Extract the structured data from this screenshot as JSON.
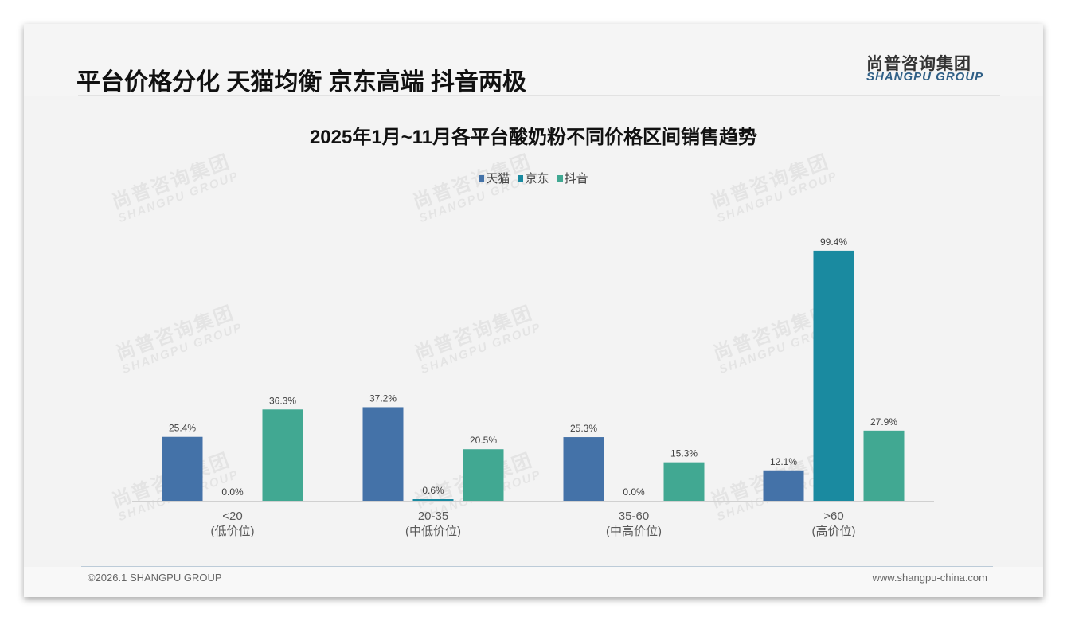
{
  "header": {
    "title": "平台价格分化 天猫均衡 京东高端 抖音两极",
    "logo_cn": "尚普咨询集团",
    "logo_en": "SHANGPU GROUP"
  },
  "watermark": {
    "cn": "尚普咨询集团",
    "en": "SHANGPU GROUP"
  },
  "footer": {
    "copyright": "©2026.1 SHANGPU GROUP",
    "url": "www.shangpu-china.com"
  },
  "chart_data": {
    "type": "bar",
    "title": "2025年1月~11月各平台酸奶粉不同价格区间销售趋势",
    "categories": [
      [
        "<20",
        "(低价位)"
      ],
      [
        "20-35",
        "(中低价位)"
      ],
      [
        "35-60",
        "(中高价位)"
      ],
      [
        ">60",
        "(高价位)"
      ]
    ],
    "series": [
      {
        "name": "天猫",
        "color": "#4472a8",
        "values": [
          25.4,
          37.2,
          25.3,
          12.1
        ]
      },
      {
        "name": "京东",
        "color": "#1a8aa0",
        "values": [
          0.0,
          0.6,
          0.0,
          99.4
        ]
      },
      {
        "name": "抖音",
        "color": "#41a892",
        "values": [
          36.3,
          20.5,
          15.3,
          27.9
        ]
      }
    ],
    "value_suffix": "%",
    "legend": "top",
    "ylim": [
      0,
      100
    ],
    "grid": false
  }
}
